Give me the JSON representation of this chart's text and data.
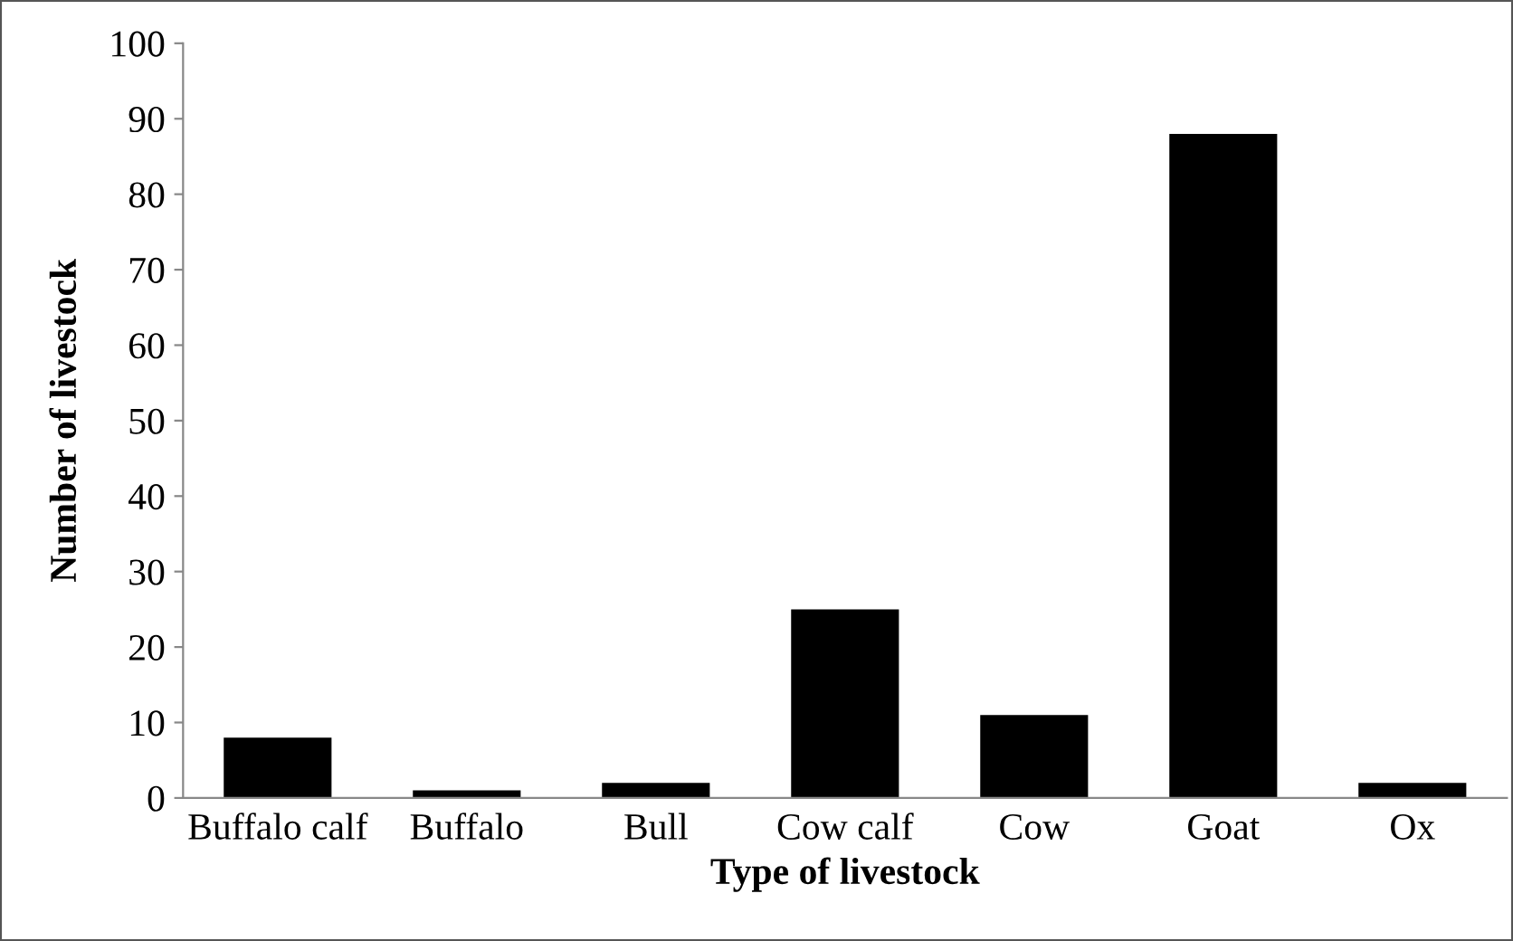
{
  "chart_data": {
    "type": "bar",
    "xlabel": "Type of livestock",
    "ylabel": "Number of livestock",
    "categories": [
      "Buffalo calf",
      "Buffalo",
      "Bull",
      "Cow calf",
      "Cow",
      "Goat",
      "Ox"
    ],
    "values": [
      8,
      1,
      2,
      25,
      11,
      88,
      2
    ],
    "color": "#000000",
    "ylim": [
      0,
      100
    ],
    "yticks": [
      0,
      10,
      20,
      30,
      40,
      50,
      60,
      70,
      80,
      90,
      100
    ],
    "grid": false
  }
}
